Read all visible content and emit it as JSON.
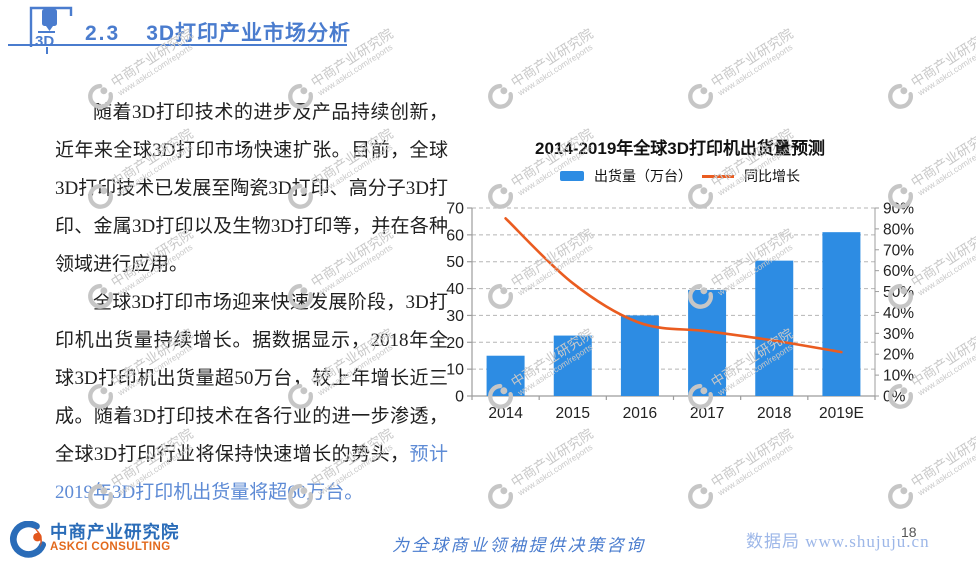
{
  "header": {
    "section_number": "2.3",
    "title": "3D打印产业市场分析"
  },
  "paragraphs": {
    "p1": "随着3D打印技术的进步及产品持续创新，近年来全球3D打印市场快速扩张。目前，全球3D打印技术已发展至陶瓷3D打印、高分子3D打印、金属3D打印以及生物3D打印等，并在各种领域进行应用。",
    "p2_black": "全球3D打印市场迎来快速发展阶段，3D打印机出货量持续增长。据数据显示，2018年全球3D打印机出货量超50万台，较上年增长近三成。随着3D打印技术在各行业的进一步渗透，全球3D打印行业将保持快速增长的势头，",
    "p2_blue": "预计2019年3D打印机出货量将超60万台。"
  },
  "chart_data": {
    "type": "bar",
    "title": "2014-2019年全球3D打印机出货量预测",
    "categories": [
      "2014",
      "2015",
      "2016",
      "2017",
      "2018",
      "2019E"
    ],
    "series": [
      {
        "name": "出货量（万台）",
        "type": "bar",
        "axis": "left",
        "values": [
          15,
          22.5,
          30,
          39.5,
          50.4,
          61
        ]
      },
      {
        "name": "同比增长",
        "type": "line",
        "axis": "right",
        "unit": "%",
        "values": [
          85,
          54,
          35,
          31,
          26.5,
          21
        ]
      }
    ],
    "left_axis": {
      "min": 0,
      "max": 70,
      "step": 10
    },
    "right_axis": {
      "min": 0,
      "max": 90,
      "step": 10,
      "suffix": "%"
    },
    "grid": "dashed-horizontal",
    "legend_position": "top"
  },
  "watermark": {
    "line1": "中商产业研究院",
    "line2": "www.askci.com/reports"
  },
  "footer": {
    "logo_title": "中商产业研究院",
    "logo_subtitle": "ASKCI CONSULTING",
    "slogan": "为全球商业领袖提供决策咨询",
    "source_site": "数据局 www.shujuju.cn",
    "page_number": "18"
  },
  "colors": {
    "accent_blue": "#4a7cce",
    "bar_blue": "#2d8ce3",
    "line_orange": "#ea5c20",
    "grid_gray": "#b5b5b5",
    "axis_gray": "#9c9c9c",
    "watermark_gray": "#c8c8c8",
    "logo_blue": "#2a6cb8",
    "logo_orange": "#e2691c",
    "source_blue": "#9db7e8"
  }
}
